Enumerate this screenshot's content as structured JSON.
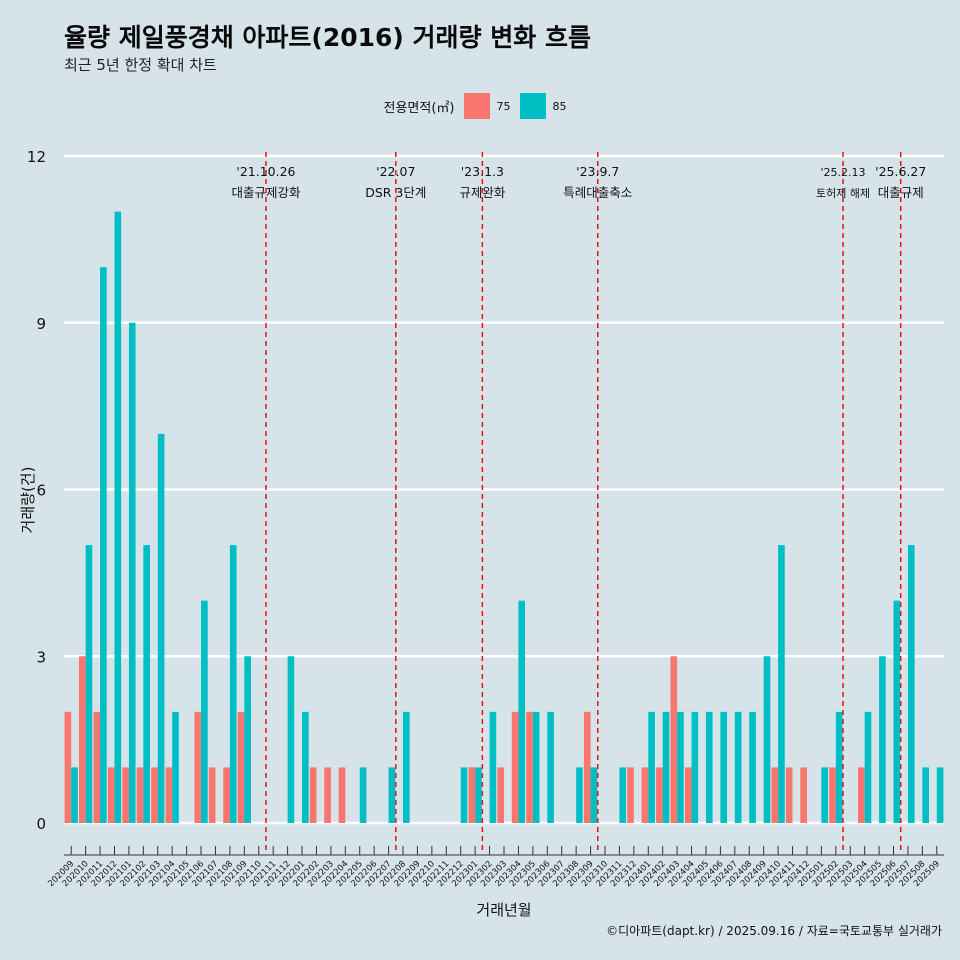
{
  "title": "율량 제일풍경채 아파트(2016) 거래량 변화 흐름",
  "subtitle": "최근 5년 한정 확대 차트",
  "caption": "©디아파트(dapt.kr) / 2025.09.16 / 자료=국토교통부 실거래가",
  "colors": {
    "background": "#d6e4ea",
    "area75": "#f8766d",
    "area85": "#00bfc4",
    "event_line": "#ee1111"
  },
  "chart_data": {
    "type": "bar",
    "xlabel": "거래년월",
    "ylabel": "거래량(건)",
    "ylim": [
      0,
      12
    ],
    "yticks": [
      0,
      3,
      6,
      9,
      12
    ],
    "legend": {
      "title": "전용면적(㎡)",
      "position": "top",
      "entries": [
        "75",
        "85"
      ]
    },
    "categories": [
      "202009",
      "202010",
      "202011",
      "202012",
      "202101",
      "202102",
      "202103",
      "202104",
      "202105",
      "202106",
      "202107",
      "202108",
      "202109",
      "202110",
      "202111",
      "202112",
      "202201",
      "202202",
      "202203",
      "202204",
      "202205",
      "202206",
      "202207",
      "202208",
      "202209",
      "202210",
      "202211",
      "202212",
      "202301",
      "202302",
      "202303",
      "202304",
      "202305",
      "202306",
      "202307",
      "202308",
      "202309",
      "202310",
      "202311",
      "202312",
      "202401",
      "202402",
      "202403",
      "202404",
      "202405",
      "202406",
      "202407",
      "202408",
      "202409",
      "202410",
      "202411",
      "202412",
      "202501",
      "202502",
      "202503",
      "202504",
      "202505",
      "202506",
      "202507",
      "202508",
      "202509"
    ],
    "series": [
      {
        "name": "75",
        "values": [
          2,
          3,
          2,
          1,
          1,
          1,
          1,
          1,
          0,
          2,
          1,
          1,
          2,
          0,
          0,
          0,
          0,
          1,
          1,
          1,
          0,
          0,
          0,
          0,
          0,
          0,
          0,
          0,
          1,
          0,
          1,
          2,
          2,
          0,
          0,
          0,
          2,
          0,
          0,
          1,
          1,
          1,
          3,
          1,
          0,
          0,
          0,
          0,
          0,
          1,
          1,
          1,
          0,
          1,
          0,
          1,
          0,
          0,
          0,
          0,
          0
        ]
      },
      {
        "name": "85",
        "values": [
          1,
          5,
          10,
          11,
          9,
          5,
          7,
          2,
          0,
          4,
          0,
          5,
          3,
          0,
          0,
          3,
          2,
          0,
          0,
          0,
          1,
          0,
          1,
          2,
          0,
          0,
          0,
          1,
          1,
          2,
          0,
          4,
          2,
          2,
          0,
          1,
          1,
          0,
          1,
          0,
          2,
          2,
          2,
          2,
          2,
          2,
          2,
          2,
          3,
          5,
          0,
          0,
          1,
          2,
          0,
          2,
          3,
          4,
          5,
          1,
          1
        ]
      }
    ],
    "events": [
      {
        "date": "'21.10.26",
        "label": "대출규제강화",
        "after_index": 13
      },
      {
        "date": "'22.07",
        "label": "DSR 3단계",
        "after_index": 22
      },
      {
        "date": "'23.1.3",
        "label": "규제완화",
        "after_index": 28
      },
      {
        "date": "'23.9.7",
        "label": "특례대출축소",
        "after_index": 36
      },
      {
        "date": "'25.2.13",
        "label": "토허제 해제",
        "after_index": 53
      },
      {
        "date": "'25.6.27",
        "label": "대출규제",
        "after_index": 57
      }
    ]
  }
}
